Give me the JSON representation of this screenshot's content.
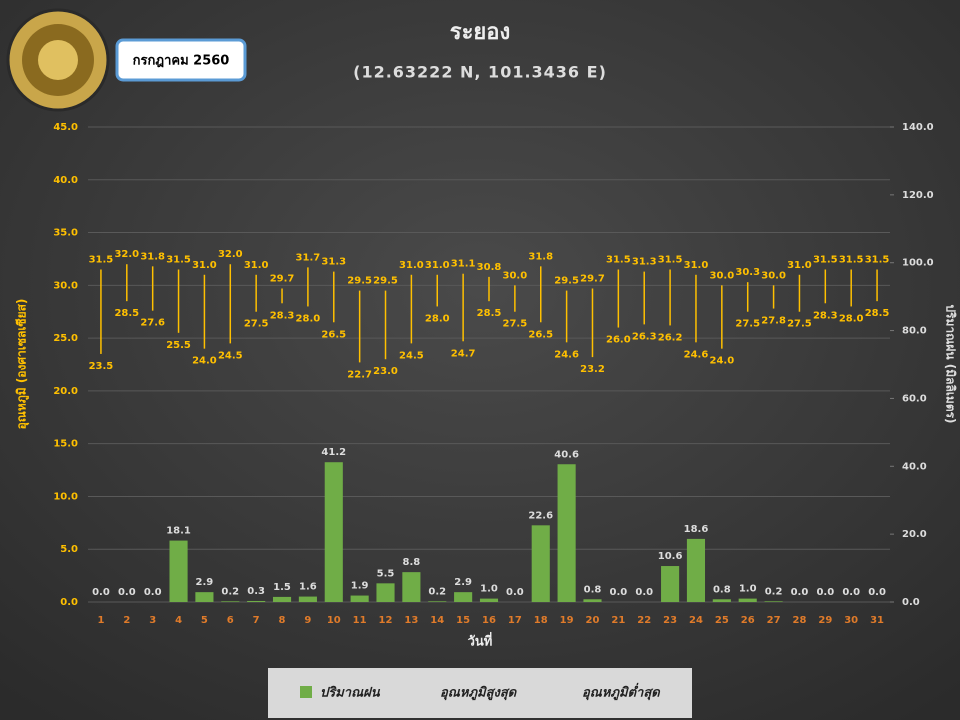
{
  "badge": "กรกฎาคม 2560",
  "chart_data": {
    "type": "bar",
    "title": "ระยอง",
    "subtitle": "(12.63222 N, 101.3436 E)",
    "x_label": "วันที่",
    "y_label": "อุณหภูมิ (องศาเซลเซียส)",
    "y2_label": "ปริมาณฝน (มิลลิเมตร)",
    "categories": [
      "1",
      "2",
      "3",
      "4",
      "5",
      "6",
      "7",
      "8",
      "9",
      "10",
      "11",
      "12",
      "13",
      "14",
      "15",
      "16",
      "17",
      "18",
      "19",
      "20",
      "21",
      "22",
      "23",
      "24",
      "25",
      "26",
      "27",
      "28",
      "29",
      "30",
      "31"
    ],
    "ylim": [
      0,
      45
    ],
    "yticks": [
      {
        "value": 0,
        "label": "0.0"
      },
      {
        "value": 5,
        "label": "5.0"
      },
      {
        "value": 10,
        "label": "10.0"
      },
      {
        "value": 15,
        "label": "15.0"
      },
      {
        "value": 20,
        "label": "20.0"
      },
      {
        "value": 25,
        "label": "25.0"
      },
      {
        "value": 30,
        "label": "30.0"
      },
      {
        "value": 35,
        "label": "35.0"
      },
      {
        "value": 40,
        "label": "40.0"
      },
      {
        "value": 45,
        "label": "45.0"
      }
    ],
    "y2lim": [
      0,
      140
    ],
    "y2ticks": [
      {
        "value": 0,
        "label": "0.0"
      },
      {
        "value": 20,
        "label": "20.0"
      },
      {
        "value": 40,
        "label": "40.0"
      },
      {
        "value": 60,
        "label": "60.0"
      },
      {
        "value": 80,
        "label": "80.0"
      },
      {
        "value": 100,
        "label": "100.0"
      },
      {
        "value": 120,
        "label": "120.0"
      },
      {
        "value": 140,
        "label": "140.0"
      }
    ],
    "grid": true,
    "series": [
      {
        "name": "ปริมาณฝน",
        "type": "bar",
        "axis": "y2",
        "color": "#70ad47",
        "values": [
          0,
          0,
          0,
          18.1,
          2.9,
          0.2,
          0.3,
          1.5,
          1.6,
          41.2,
          1.9,
          5.5,
          8.8,
          0.2,
          2.9,
          1.0,
          0,
          22.6,
          40.6,
          0.8,
          0,
          0,
          10.6,
          18.6,
          0.8,
          1.0,
          0.2,
          0,
          0,
          0,
          0
        ],
        "value_labels": [
          "0.0",
          "0.0",
          "0.0",
          "18.1",
          "2.9",
          "0.2",
          "0.3",
          "1.5",
          "1.6",
          "41.2",
          "1.9",
          "5.5",
          "8.8",
          "0.2",
          "2.9",
          "1.0",
          "0.0",
          "22.6",
          "40.6",
          "0.8",
          "0.0",
          "0.0",
          "10.6",
          "18.6",
          "0.8",
          "1.0",
          "0.2",
          "0.0",
          "0.0",
          "0.0",
          "0.0"
        ]
      },
      {
        "name": "อุณหภูมิสูงสุด",
        "type": "high",
        "color": "#ffc000",
        "values": [
          31.5,
          32.0,
          31.8,
          31.5,
          31.0,
          32.0,
          31.0,
          29.7,
          31.7,
          31.3,
          29.5,
          29.5,
          31.0,
          31.0,
          31.1,
          30.8,
          30.0,
          31.8,
          29.5,
          29.7,
          31.5,
          31.3,
          31.5,
          31.0,
          30.0,
          30.3,
          30.0,
          31.0,
          31.5,
          31.5,
          31.5
        ],
        "value_labels": [
          "31.5",
          "32.0",
          "31.8",
          "31.5",
          "31.0",
          "32.0",
          "31.0",
          "29.7",
          "31.7",
          "31.3",
          "29.5",
          "29.5",
          "31.0",
          "31.0",
          "31.1",
          "30.8",
          "30.0",
          "31.8",
          "29.5",
          "29.7",
          "31.5",
          "31.3",
          "31.5",
          "31.0",
          "30.0",
          "30.3",
          "30.0",
          "31.0",
          "31.5",
          "31.5",
          "31.5"
        ]
      },
      {
        "name": "อุณหภูมิต่ำสุด",
        "type": "low",
        "color": "#ffc000",
        "values": [
          23.5,
          28.5,
          27.6,
          25.5,
          24.0,
          24.5,
          27.5,
          28.3,
          28.0,
          26.5,
          22.7,
          23.0,
          24.5,
          28.0,
          24.7,
          28.5,
          27.5,
          26.5,
          24.6,
          23.2,
          26.0,
          26.3,
          26.2,
          24.6,
          24.0,
          27.5,
          27.8,
          27.5,
          28.3,
          28.0,
          28.5
        ],
        "value_labels": [
          "23.5",
          "28.5",
          "27.6",
          "25.5",
          "24.0",
          "24.5",
          "27.5",
          "28.3",
          "28.0",
          "26.5",
          "22.7",
          "23.0",
          "24.5",
          "28.0",
          "24.7",
          "28.5",
          "27.5",
          "26.5",
          "24.6",
          "23.2",
          "26.0",
          "26.3",
          "26.2",
          "24.6",
          "24.0",
          "27.5",
          "27.8",
          "27.5",
          "28.3",
          "28.0",
          "28.5"
        ]
      }
    ]
  }
}
